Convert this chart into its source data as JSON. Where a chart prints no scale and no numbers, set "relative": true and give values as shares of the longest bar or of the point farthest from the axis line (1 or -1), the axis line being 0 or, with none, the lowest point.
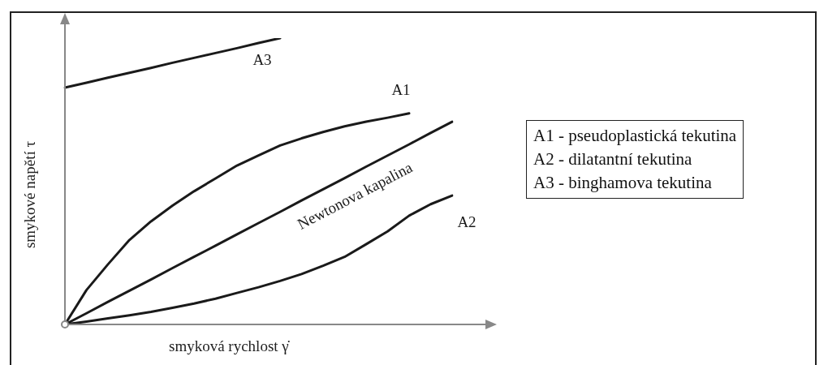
{
  "chart_data": {
    "type": "line",
    "relative": true,
    "xlabel": "smyková rychlost γ̇",
    "ylabel": "smykové napětí τ",
    "grid": false,
    "legend": false,
    "marker": "none",
    "line_style": "solid",
    "categories": [
      null,
      null,
      null,
      null,
      null,
      null,
      null,
      null,
      null,
      null,
      null,
      null,
      null,
      null,
      null,
      null,
      null,
      null,
      null
    ],
    "series": [
      {
        "name": "A3",
        "color": "#1a1a1a",
        "values": [
          0.827,
          0.844,
          0.862,
          0.879,
          0.896,
          0.914,
          0.931,
          0.948,
          0.965,
          0.983,
          1.0,
          null,
          null,
          null,
          null,
          null,
          null,
          null,
          null
        ]
      },
      {
        "name": "A1",
        "color": "#1a1a1a",
        "values": [
          0,
          0.12,
          0.21,
          0.295,
          0.36,
          0.415,
          0.465,
          0.51,
          0.555,
          0.59,
          0.625,
          0.65,
          0.672,
          0.692,
          0.708,
          0.722,
          0.737,
          null,
          null
        ]
      },
      {
        "name": "Newtonova kapalina",
        "color": "#1a1a1a",
        "values": [
          0,
          0.039,
          0.079,
          0.118,
          0.157,
          0.197,
          0.236,
          0.275,
          0.315,
          0.354,
          0.393,
          0.433,
          0.472,
          0.511,
          0.551,
          0.59,
          0.629,
          0.669,
          0.708
        ]
      },
      {
        "name": "A2",
        "color": "#1a1a1a",
        "values": [
          0,
          0.01,
          0.021,
          0.032,
          0.044,
          0.058,
          0.073,
          0.09,
          0.11,
          0.13,
          0.152,
          0.176,
          0.205,
          0.236,
          0.28,
          0.325,
          0.38,
          0.42,
          0.45
        ]
      }
    ],
    "annotations": [
      "A1 - pseudoplastická tekutina",
      "A2 - dilatantní tekutina",
      "A3 - binghamova tekutina"
    ]
  }
}
